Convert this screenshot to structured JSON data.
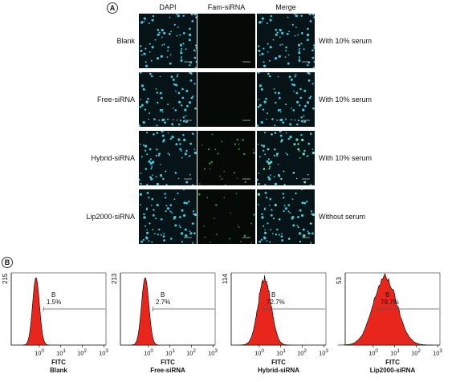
{
  "panel_a": {
    "letter": "A",
    "columns": [
      "DAPI",
      "Fam-siRNA",
      "Merge"
    ],
    "rows": [
      {
        "label": "Blank",
        "condition": "With 10% serum",
        "green": 0
      },
      {
        "label": "Free-siRNA",
        "condition": "With 10% serum",
        "green": 0
      },
      {
        "label": "Hybrid-siRNA",
        "condition": "With 10% serum",
        "green": 0.35
      },
      {
        "label": "Lip2000-siRNA",
        "condition": "Without serum",
        "green": 0.25
      }
    ]
  },
  "panel_b": {
    "letter": "B",
    "colors": {
      "fill": "#e8261c",
      "stroke": "#000000"
    },
    "histograms": [
      {
        "name": "Blank",
        "xlabel": "FITC",
        "ymax": "215",
        "gate": "B",
        "percent": "1.5%",
        "peak_log": -0.15,
        "spread": 0.16
      },
      {
        "name": "Free-siRNA",
        "xlabel": "FITC",
        "ymax": "213",
        "gate": "B",
        "percent": "2.7%",
        "peak_log": -0.15,
        "spread": 0.17
      },
      {
        "name": "Hybrid-siRNA",
        "xlabel": "FITC",
        "ymax": "114",
        "gate": "B",
        "percent": "72.7%",
        "peak_log": 0.25,
        "spread": 0.3
      },
      {
        "name": "Lip2000-siRNA",
        "xlabel": "FITC",
        "ymax": "53",
        "gate": "B",
        "percent": "79.7%",
        "peak_log": 0.55,
        "spread": 0.55
      }
    ],
    "x_ticks": [
      "10<sup>0</sup>",
      "10<sup>1</sup>",
      "10<sup>2</sup>",
      "10<sup>3</sup>"
    ]
  }
}
